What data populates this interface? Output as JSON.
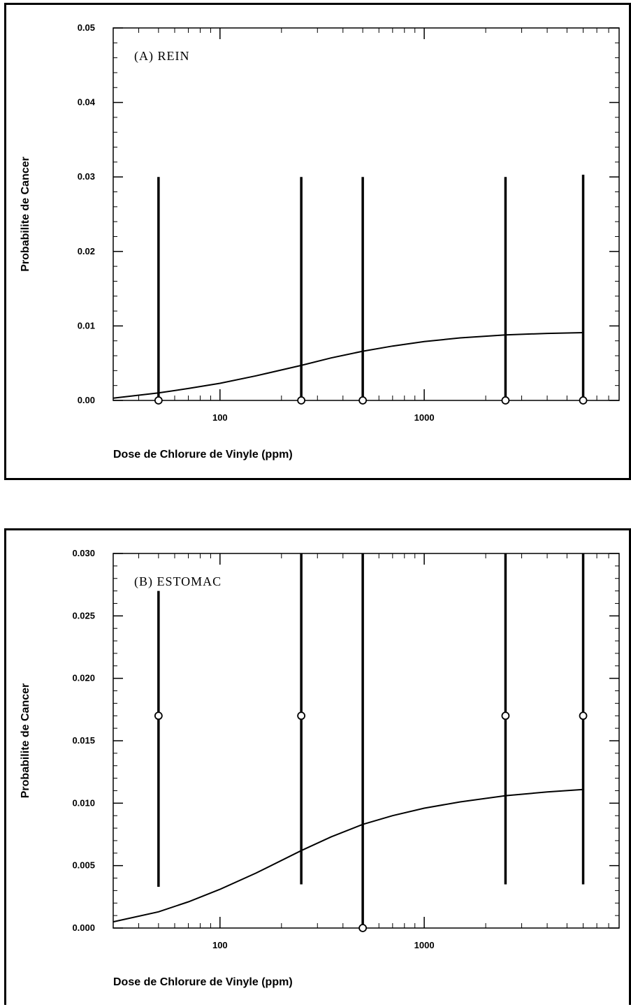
{
  "chart_data": [
    {
      "type": "line",
      "panel_label": "(A)  REIN",
      "xlabel": "Dose de Chlorure de Vinyle  (ppm)",
      "ylabel": "Probabilite de Cancer",
      "x_scale": "log",
      "xlim": [
        30,
        9000
      ],
      "ylim": [
        0,
        0.05
      ],
      "x_tick_labels": [
        "100",
        "1000"
      ],
      "y_tick_labels": [
        "0.00",
        "0.01",
        "0.02",
        "0.03",
        "0.04",
        "0.05"
      ],
      "y_ticks": [
        0,
        0.01,
        0.02,
        0.03,
        0.04,
        0.05
      ],
      "x_ticks_major": [
        100,
        1000
      ],
      "curve": {
        "x": [
          30,
          50,
          70,
          100,
          150,
          250,
          350,
          500,
          700,
          1000,
          1500,
          2500,
          4000,
          6000
        ],
        "y": [
          0.0003,
          0.001,
          0.0016,
          0.0023,
          0.0033,
          0.0047,
          0.0057,
          0.0066,
          0.0073,
          0.0079,
          0.0084,
          0.0088,
          0.009,
          0.0091
        ]
      },
      "observations": {
        "x": [
          50,
          250,
          500,
          2500,
          6000
        ],
        "y": [
          0,
          0,
          0,
          0,
          0
        ],
        "upper": [
          0.03,
          0.03,
          0.03,
          0.03,
          0.0303
        ],
        "lower": [
          0,
          0,
          0,
          0,
          0
        ]
      }
    },
    {
      "type": "line",
      "panel_label": "(B)  ESTOMAC",
      "xlabel": "Dose de Chlorure de Vinyle  (ppm)",
      "ylabel": "Probabilite de Cancer",
      "x_scale": "log",
      "xlim": [
        30,
        9000
      ],
      "ylim": [
        0,
        0.03
      ],
      "x_tick_labels": [
        "100",
        "1000"
      ],
      "y_tick_labels": [
        "0.000",
        "0.005",
        "0.010",
        "0.015",
        "0.020",
        "0.025",
        "0.030"
      ],
      "y_ticks": [
        0,
        0.005,
        0.01,
        0.015,
        0.02,
        0.025,
        0.03
      ],
      "x_ticks_major": [
        100,
        1000
      ],
      "curve": {
        "x": [
          30,
          50,
          70,
          100,
          150,
          250,
          350,
          500,
          700,
          1000,
          1500,
          2500,
          4000,
          6000
        ],
        "y": [
          0.0005,
          0.0013,
          0.0021,
          0.0031,
          0.0044,
          0.0062,
          0.0073,
          0.0083,
          0.009,
          0.0096,
          0.0101,
          0.0106,
          0.0109,
          0.0111
        ]
      },
      "observations": {
        "x": [
          50,
          250,
          500,
          2500,
          6000
        ],
        "y": [
          0.017,
          0.017,
          0,
          0.017,
          0.017
        ],
        "upper": [
          0.027,
          0.03,
          0.03,
          0.03,
          0.03
        ],
        "lower": [
          0.0033,
          0.0035,
          0,
          0.0035,
          0.0035
        ]
      }
    }
  ]
}
